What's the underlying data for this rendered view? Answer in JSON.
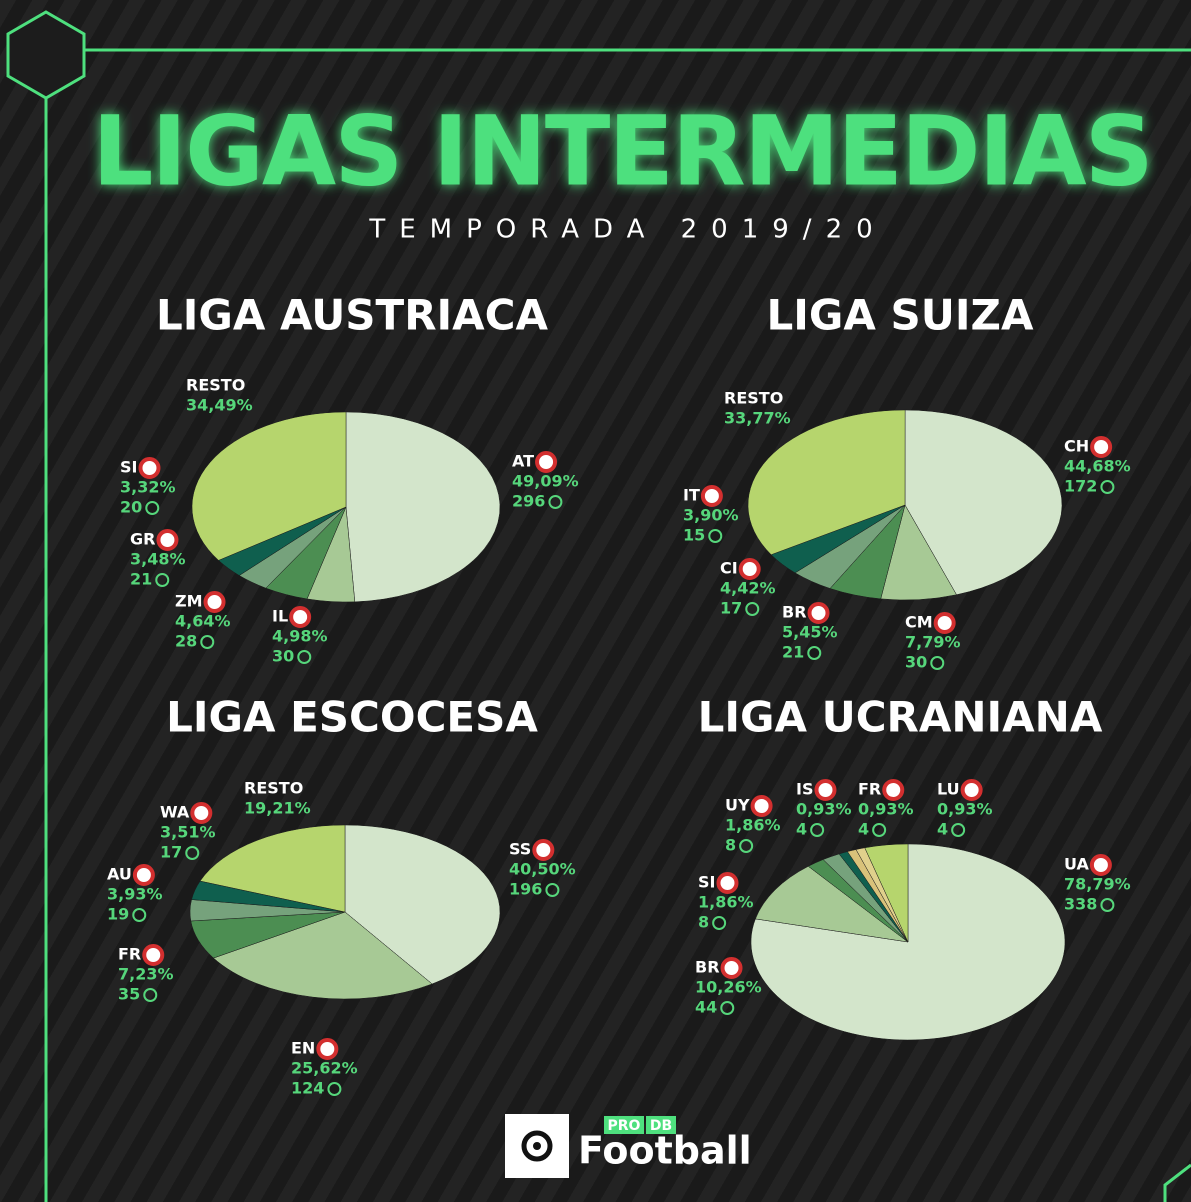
{
  "title": "LIGAS INTERMEDIAS",
  "subtitle": "TEMPORADA 2019/20",
  "logo": {
    "pro": "PRO",
    "db": "DB",
    "name": "Football"
  },
  "chart_data": [
    {
      "type": "pie",
      "title": "LIGA AUSTRIACA",
      "categories": [
        "AT",
        "IL",
        "ZM",
        "GR",
        "SI",
        "RESTO"
      ],
      "values": [
        49.09,
        4.98,
        4.64,
        3.48,
        3.32,
        34.49
      ],
      "value_labels": [
        "49,09%",
        "4,98%",
        "4,64%",
        "3,48%",
        "3,32%",
        "34,49%"
      ],
      "counts": [
        296,
        30,
        28,
        21,
        20,
        null
      ],
      "colors": [
        "#d3e5cb",
        "#a7c995",
        "#4c8e52",
        "#76a27c",
        "#0f5f4e",
        "#b6d56d"
      ]
    },
    {
      "type": "pie",
      "title": "LIGA SUIZA",
      "categories": [
        "CH",
        "CM",
        "BR",
        "CI",
        "IT",
        "RESTO"
      ],
      "values": [
        44.68,
        7.79,
        5.45,
        4.42,
        3.9,
        33.77
      ],
      "value_labels": [
        "44,68%",
        "7,79%",
        "5,45%",
        "4,42%",
        "3,90%",
        "33,77%"
      ],
      "counts": [
        172,
        30,
        21,
        17,
        15,
        null
      ],
      "colors": [
        "#d3e5cb",
        "#a7c995",
        "#4c8e52",
        "#76a27c",
        "#0f5f4e",
        "#b6d56d"
      ]
    },
    {
      "type": "pie",
      "title": "LIGA ESCOCESA",
      "categories": [
        "SS",
        "EN",
        "FR",
        "AU",
        "WA",
        "RESTO"
      ],
      "values": [
        40.5,
        25.62,
        7.23,
        3.93,
        3.51,
        19.21
      ],
      "value_labels": [
        "40,50%",
        "25,62%",
        "7,23%",
        "3,93%",
        "3,51%",
        "19,21%"
      ],
      "counts": [
        196,
        124,
        35,
        19,
        17,
        null
      ],
      "colors": [
        "#d3e5cb",
        "#a7c995",
        "#4c8e52",
        "#76a27c",
        "#0f5f4e",
        "#b6d56d"
      ]
    },
    {
      "type": "pie",
      "title": "LIGA UCRANIANA",
      "categories": [
        "UA",
        "BR",
        "SI",
        "UY",
        "IS",
        "FR",
        "LU",
        null
      ],
      "values": [
        78.79,
        10.26,
        1.86,
        1.86,
        0.93,
        0.93,
        0.93,
        4.44
      ],
      "value_labels": [
        "78,79%",
        "10,26%",
        "1,86%",
        "1,86%",
        "0,93%",
        "0,93%",
        "0,93%",
        null
      ],
      "counts": [
        338,
        44,
        8,
        8,
        4,
        4,
        4,
        null
      ],
      "colors": [
        "#d3e5cb",
        "#a7c995",
        "#4c8e52",
        "#76a27c",
        "#0f5f4e",
        "#d9c27a",
        "#e0d08c",
        "#b6d56d"
      ]
    }
  ]
}
